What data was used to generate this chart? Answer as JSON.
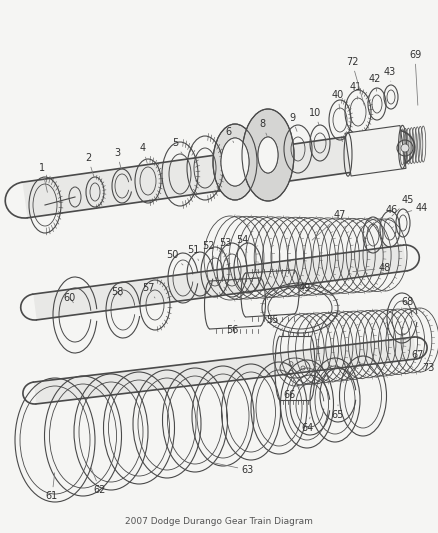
{
  "title": "2007 Dodge Durango Gear Train Diagram",
  "bg_color": "#f5f5f3",
  "line_color": "#4a4a4a",
  "label_color": "#333333",
  "fig_width": 4.38,
  "fig_height": 5.33,
  "dpi": 100
}
